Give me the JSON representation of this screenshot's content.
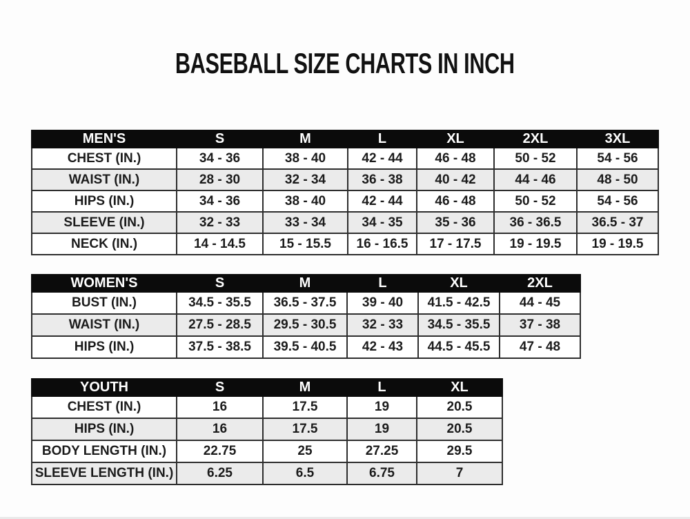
{
  "title": "BASEBALL SIZE CHARTS IN INCH",
  "colors": {
    "header_bg": "#0b0b0b",
    "header_text": "#ffffff",
    "row_stripe": "#ebebeb",
    "border": "#2d2d2d",
    "cell_text": "#1b1b1b",
    "title_text": "#111111",
    "background": "#fdfdfd"
  },
  "chart_data": [
    {
      "type": "table",
      "name": "mens",
      "title": "MEN'S",
      "columns": [
        "MEN'S",
        "S",
        "M",
        "L",
        "XL",
        "2XL",
        "3XL"
      ],
      "rows": [
        [
          "CHEST (IN.)",
          "34 - 36",
          "38 - 40",
          "42 - 44",
          "46 - 48",
          "50 - 52",
          "54 - 56"
        ],
        [
          "WAIST (IN.)",
          "28 - 30",
          "32 - 34",
          "36 - 38",
          "40 - 42",
          "44 - 46",
          "48 - 50"
        ],
        [
          "HIPS (IN.)",
          "34 - 36",
          "38 - 40",
          "42 - 44",
          "46 - 48",
          "50 - 52",
          "54 - 56"
        ],
        [
          "SLEEVE (IN.)",
          "32 - 33",
          "33 - 34",
          "34 - 35",
          "35 - 36",
          "36 - 36.5",
          "36.5 - 37"
        ],
        [
          "NECK (IN.)",
          "14 - 14.5",
          "15 - 15.5",
          "16 - 16.5",
          "17 - 17.5",
          "19 - 19.5",
          "19 - 19.5"
        ]
      ]
    },
    {
      "type": "table",
      "name": "womens",
      "title": "WOMEN'S",
      "columns": [
        "WOMEN'S",
        "S",
        "M",
        "L",
        "XL",
        "2XL"
      ],
      "rows": [
        [
          "BUST (IN.)",
          "34.5 - 35.5",
          "36.5 - 37.5",
          "39 - 40",
          "41.5 - 42.5",
          "44 - 45"
        ],
        [
          "WAIST (IN.)",
          "27.5 - 28.5",
          "29.5 - 30.5",
          "32 - 33",
          "34.5 - 35.5",
          "37 - 38"
        ],
        [
          "HIPS (IN.)",
          "37.5 - 38.5",
          "39.5 - 40.5",
          "42 - 43",
          "44.5 - 45.5",
          "47 - 48"
        ]
      ]
    },
    {
      "type": "table",
      "name": "youth",
      "title": "YOUTH",
      "columns": [
        "YOUTH",
        "S",
        "M",
        "L",
        "XL"
      ],
      "rows": [
        [
          "CHEST (IN.)",
          "16",
          "17.5",
          "19",
          "20.5"
        ],
        [
          "HIPS (IN.)",
          "16",
          "17.5",
          "19",
          "20.5"
        ],
        [
          "BODY LENGTH (IN.)",
          "22.75",
          "25",
          "27.25",
          "29.5"
        ],
        [
          "SLEEVE LENGTH (IN.)",
          "6.25",
          "6.5",
          "6.75",
          "7"
        ]
      ]
    }
  ]
}
